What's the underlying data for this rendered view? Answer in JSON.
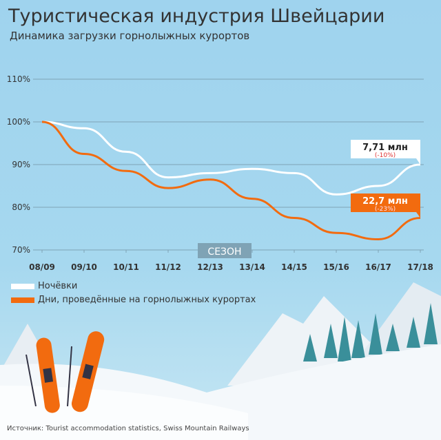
{
  "header": {
    "title": "Туристическая индустрия Швейцарии",
    "subtitle": "Динамика загрузки горнолыжных курортов"
  },
  "chart_data": {
    "type": "line",
    "xlabel": "СЕЗОН",
    "categories": [
      "08/09",
      "09/10",
      "10/11",
      "11/12",
      "12/13",
      "13/14",
      "14/15",
      "15/16",
      "16/17",
      "17/18"
    ],
    "yticks": [
      "70%",
      "80%",
      "90%",
      "100%",
      "110%"
    ],
    "ylim": [
      70,
      110
    ],
    "grid": true,
    "legend_placement": "bottom-left",
    "series": [
      {
        "name": "Ночёвки",
        "color": "#ffffff",
        "values": [
          100,
          98.5,
          93,
          87,
          88,
          89,
          88,
          83,
          85,
          90
        ],
        "annotation": {
          "value": "7,71 млн",
          "change": "(-10%)"
        }
      },
      {
        "name": "Дни, проведённые на горнолыжных курортах",
        "color": "#f26b0f",
        "values": [
          100,
          92.5,
          88.5,
          84.5,
          86.5,
          82,
          77.5,
          74,
          72.5,
          77.5
        ],
        "annotation": {
          "value": "22,7 млн",
          "change": "(-23%)"
        }
      }
    ]
  },
  "footer": {
    "source": "Источник: Tourist accommodation statistics, Swiss Mountain Railways"
  }
}
